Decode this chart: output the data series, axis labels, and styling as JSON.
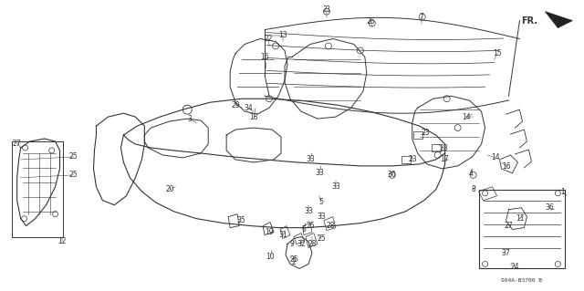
{
  "background_color": "#ffffff",
  "diagram_code": "S04A-B3700 B",
  "line_color": "#333333",
  "label_fontsize": 5.5,
  "fig_width": 6.4,
  "fig_height": 3.19,
  "dpi": 100,
  "fr_label": "FR.",
  "part_labels": [
    [
      "1",
      617,
      211
    ],
    [
      "2",
      322,
      288
    ],
    [
      "3",
      208,
      130
    ],
    [
      "4",
      516,
      191
    ],
    [
      "5",
      352,
      222
    ],
    [
      "6",
      333,
      252
    ],
    [
      "7",
      462,
      18
    ],
    [
      "8",
      519,
      208
    ],
    [
      "9",
      320,
      268
    ],
    [
      "10",
      296,
      282
    ],
    [
      "11",
      570,
      240
    ],
    [
      "12",
      67,
      265
    ],
    [
      "13",
      310,
      38
    ],
    [
      "14",
      511,
      128
    ],
    [
      "14",
      543,
      173
    ],
    [
      "15",
      546,
      58
    ],
    [
      "16",
      290,
      62
    ],
    [
      "16",
      556,
      183
    ],
    [
      "17",
      487,
      175
    ],
    [
      "18",
      278,
      128
    ],
    [
      "19",
      295,
      255
    ],
    [
      "20",
      186,
      208
    ],
    [
      "21",
      358,
      10
    ],
    [
      "22",
      294,
      42
    ],
    [
      "23",
      467,
      145
    ],
    [
      "23",
      487,
      163
    ],
    [
      "23",
      453,
      175
    ],
    [
      "24",
      565,
      293
    ],
    [
      "25",
      80,
      172
    ],
    [
      "25",
      80,
      192
    ],
    [
      "25",
      340,
      248
    ],
    [
      "25",
      352,
      262
    ],
    [
      "25",
      322,
      285
    ],
    [
      "26",
      406,
      23
    ],
    [
      "27",
      18,
      157
    ],
    [
      "27",
      558,
      248
    ],
    [
      "28",
      362,
      248
    ],
    [
      "28",
      342,
      268
    ],
    [
      "29",
      258,
      115
    ],
    [
      "30",
      430,
      192
    ],
    [
      "31",
      310,
      258
    ],
    [
      "32",
      330,
      268
    ],
    [
      "33",
      340,
      175
    ],
    [
      "33",
      350,
      190
    ],
    [
      "33",
      368,
      205
    ],
    [
      "33",
      338,
      232
    ],
    [
      "33",
      352,
      238
    ],
    [
      "34",
      272,
      118
    ],
    [
      "35",
      264,
      242
    ],
    [
      "36",
      603,
      228
    ],
    [
      "37",
      555,
      278
    ]
  ]
}
